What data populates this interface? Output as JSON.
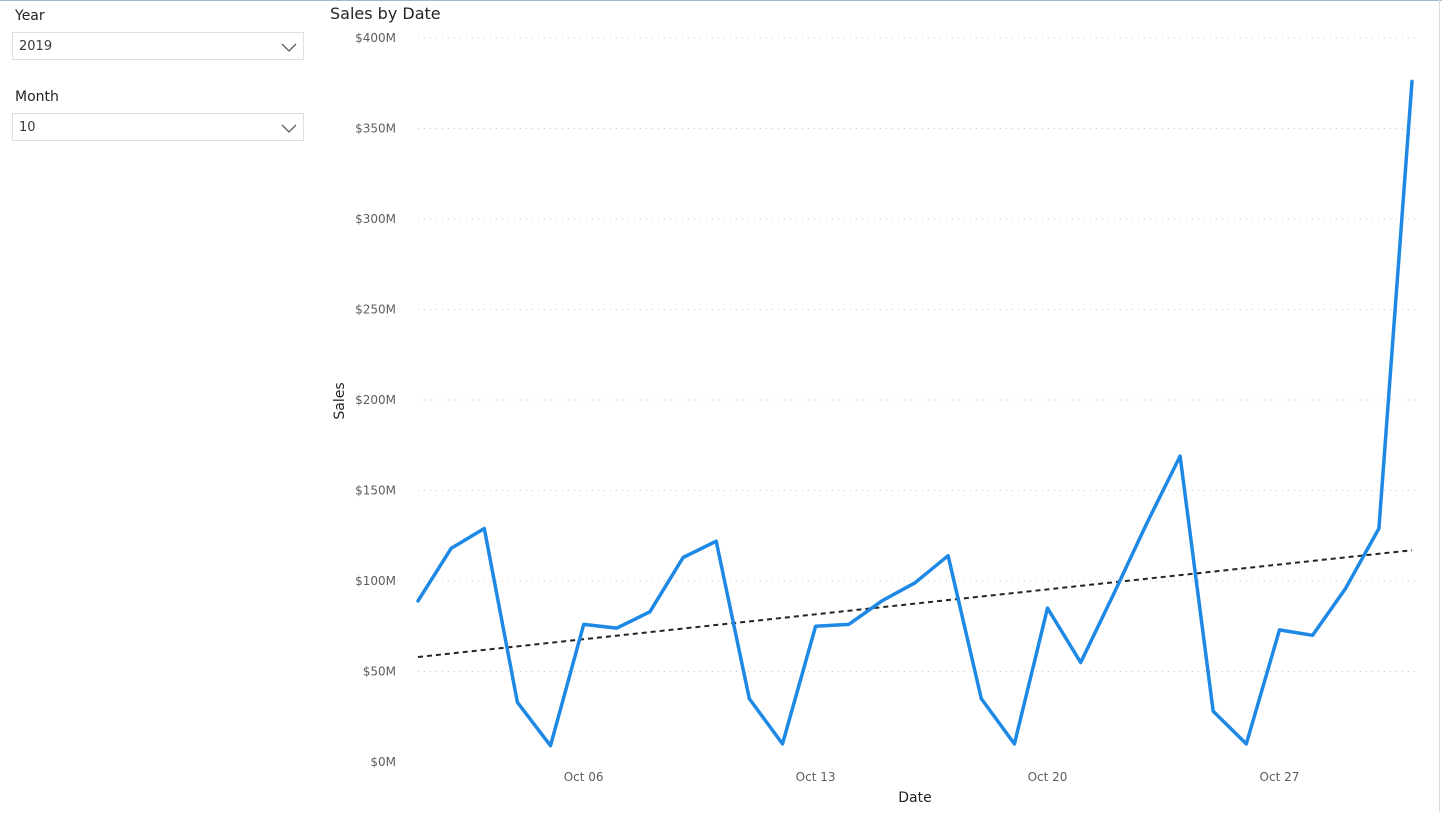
{
  "slicers": {
    "year": {
      "title": "Year",
      "value": "2019"
    },
    "month": {
      "title": "Month",
      "value": "10"
    }
  },
  "colors": {
    "line": "#1e88e5",
    "trend": "#252423",
    "grid": "#c8c6c4",
    "axis_text": "#605e5c"
  },
  "chart_data": {
    "type": "line",
    "title": "Sales by Date",
    "xlabel": "Date",
    "ylabel": "Sales",
    "ylim": [
      0,
      400
    ],
    "y_unit": "M",
    "yticks": [
      0,
      50,
      100,
      150,
      200,
      250,
      300,
      350,
      400
    ],
    "ytick_labels": [
      "$0M",
      "$50M",
      "$100M",
      "$150M",
      "$200M",
      "$250M",
      "$300M",
      "$350M",
      "$400M"
    ],
    "xticks": [
      6,
      13,
      20,
      27
    ],
    "xtick_labels": [
      "Oct 06",
      "Oct 13",
      "Oct 20",
      "Oct 27"
    ],
    "xlim": [
      1,
      31
    ],
    "grid": true,
    "legend": "none",
    "series": [
      {
        "x": [
          1,
          2,
          3,
          4,
          5,
          6,
          7,
          8,
          9,
          10,
          11,
          12,
          13,
          14,
          15,
          16,
          17,
          18,
          19,
          20,
          21,
          22,
          23,
          24,
          25,
          26,
          27,
          28,
          29,
          30,
          31
        ],
        "values": [
          89,
          118,
          129,
          33,
          9,
          76,
          74,
          83,
          113,
          122,
          35,
          10,
          75,
          76,
          89,
          99,
          114,
          35,
          10,
          85,
          55,
          93,
          132,
          169,
          28,
          10,
          73,
          70,
          96,
          129,
          376
        ]
      }
    ],
    "trendline": {
      "style": "dashed",
      "start": [
        1,
        58
      ],
      "end": [
        31,
        117
      ]
    }
  }
}
